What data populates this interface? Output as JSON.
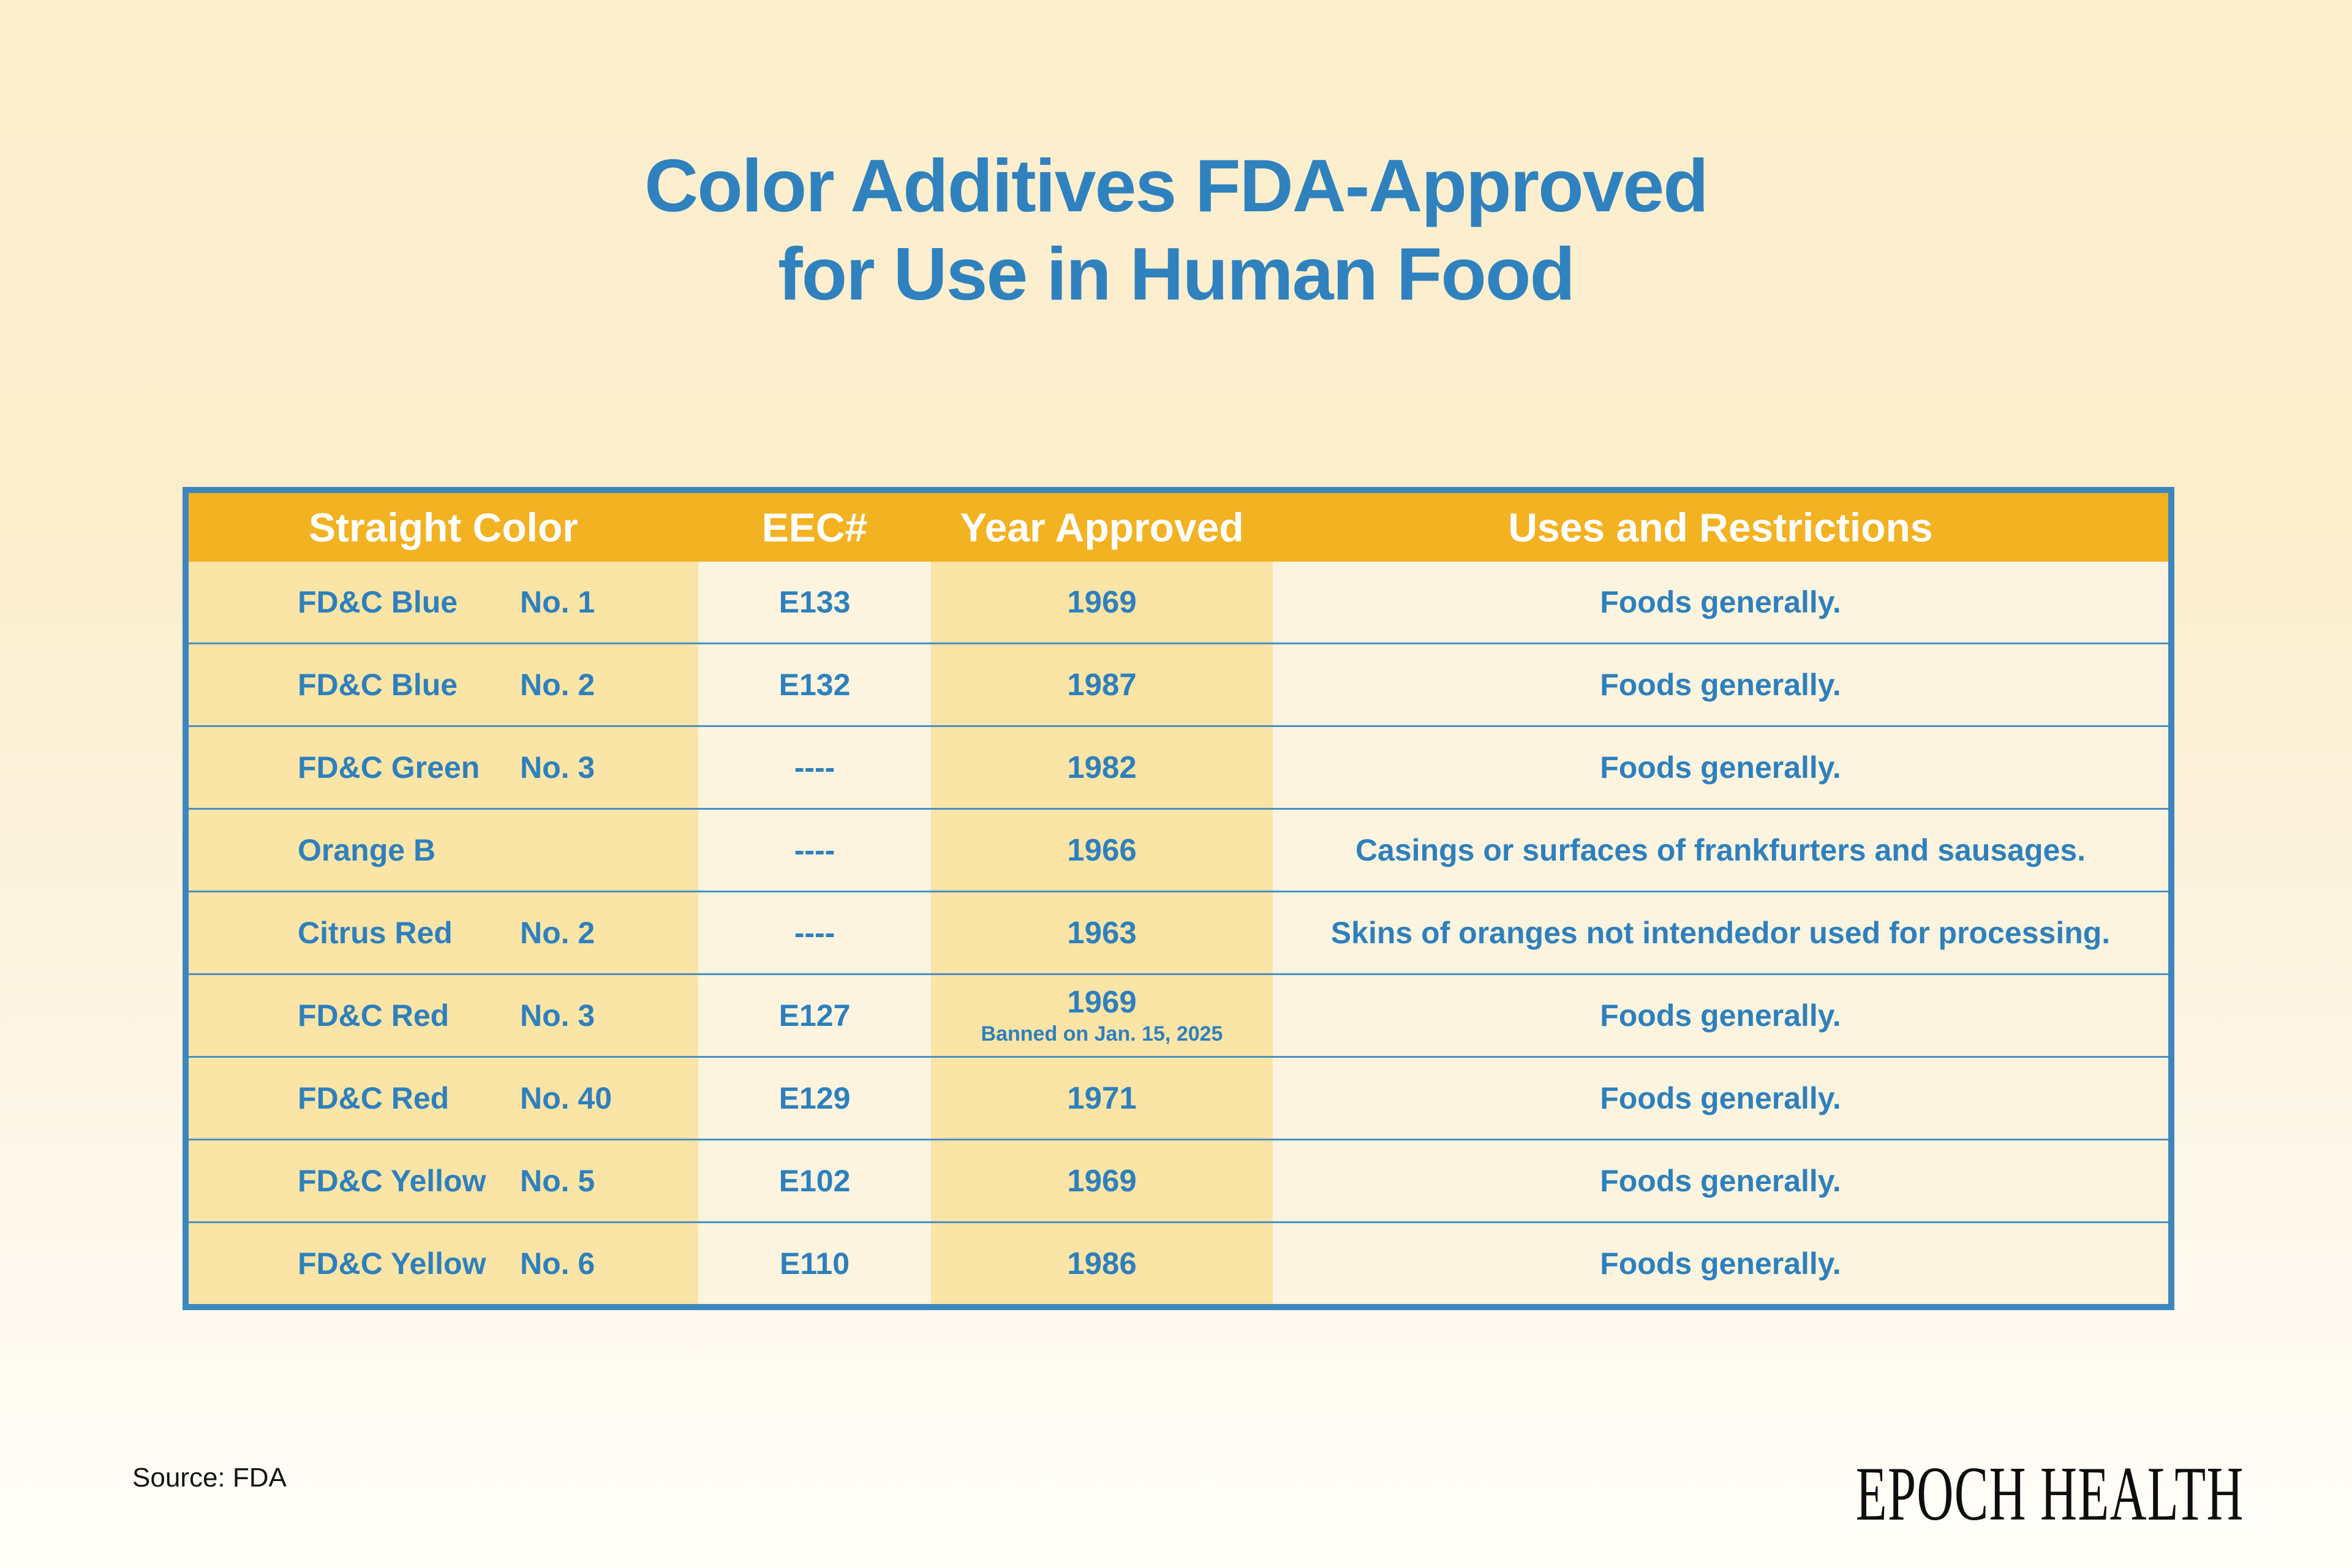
{
  "page": {
    "title_line1": "Color Additives FDA-Approved",
    "title_line2": "for Use in Human Food",
    "source": "Source: FDA",
    "brand": "EPOCH HEALTH"
  },
  "colors": {
    "title_blue": "#2F82BE",
    "cell_text_blue": "#2E80BD",
    "header_gold": "#F3B222",
    "tan_column": "#FAE4A6",
    "cream_column": "#FCF4DF",
    "table_border_blue": "#3E86BE",
    "row_divider_blue": "#4A90C3",
    "background_top": "#FCEFCE",
    "background_bottom": "#FFFEF9"
  },
  "table": {
    "headers": {
      "color": "Straight Color",
      "eec": "EEC#",
      "year": "Year Approved",
      "uses": "Uses and Restrictions"
    },
    "rows": [
      {
        "name": "FD&C Blue",
        "no": "No. 1",
        "eec": "E133",
        "year": "1969",
        "note": "",
        "uses": "Foods generally."
      },
      {
        "name": "FD&C Blue",
        "no": "No. 2",
        "eec": "E132",
        "year": "1987",
        "note": "",
        "uses": "Foods generally."
      },
      {
        "name": "FD&C Green",
        "no": "No. 3",
        "eec": "----",
        "year": "1982",
        "note": "",
        "uses": "Foods generally."
      },
      {
        "name": "Orange B",
        "no": "",
        "eec": "----",
        "year": "1966",
        "note": "",
        "uses": "Casings or surfaces of frankfurters and sausages."
      },
      {
        "name": "Citrus Red",
        "no": "No. 2",
        "eec": "----",
        "year": "1963",
        "note": "",
        "uses": "Skins of oranges not intendedor used for processing."
      },
      {
        "name": "FD&C Red",
        "no": "No. 3",
        "eec": "E127",
        "year": "1969",
        "note": "Banned on Jan. 15, 2025",
        "uses": "Foods generally."
      },
      {
        "name": "FD&C Red",
        "no": "No. 40",
        "eec": "E129",
        "year": "1971",
        "note": "",
        "uses": "Foods generally."
      },
      {
        "name": "FD&C Yellow",
        "no": "No. 5",
        "eec": "E102",
        "year": "1969",
        "note": "",
        "uses": "Foods generally."
      },
      {
        "name": "FD&C Yellow",
        "no": "No. 6",
        "eec": "E110",
        "year": "1986",
        "note": "",
        "uses": "Foods generally."
      }
    ]
  },
  "chart_data": {
    "type": "table",
    "title": "Color Additives FDA-Approved for Use in Human Food",
    "columns": [
      "Straight Color",
      "EEC#",
      "Year Approved",
      "Uses and Restrictions"
    ],
    "rows": [
      [
        "FD&C Blue No. 1",
        "E133",
        "1969",
        "Foods generally."
      ],
      [
        "FD&C Blue No. 2",
        "E132",
        "1987",
        "Foods generally."
      ],
      [
        "FD&C Green No. 3",
        "----",
        "1982",
        "Foods generally."
      ],
      [
        "Orange B",
        "----",
        "1966",
        "Casings or surfaces of frankfurters and sausages."
      ],
      [
        "Citrus Red No. 2",
        "----",
        "1963",
        "Skins of oranges not intendedor used for processing."
      ],
      [
        "FD&C Red No. 3",
        "E127",
        "1969 (Banned on Jan. 15, 2025)",
        "Foods generally."
      ],
      [
        "FD&C Red No. 40",
        "E129",
        "1971",
        "Foods generally."
      ],
      [
        "FD&C Yellow No. 5",
        "E102",
        "1969",
        "Foods generally."
      ],
      [
        "FD&C Yellow No. 6",
        "E110",
        "1986",
        "Foods generally."
      ]
    ],
    "source": "FDA"
  }
}
